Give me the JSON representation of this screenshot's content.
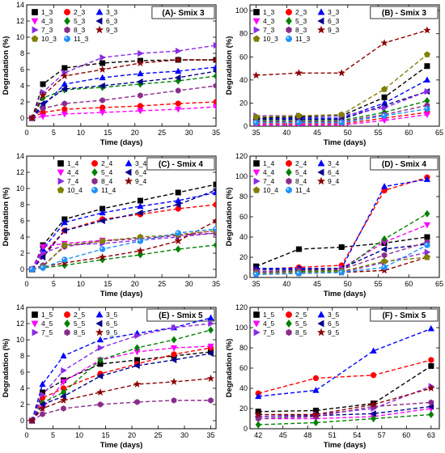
{
  "chart_data": [
    {
      "type": "scatter",
      "title": "(A)- Smix 3",
      "xlabel": "Time (days)",
      "ylabel": "Degradation (%)",
      "xlim": [
        0,
        35
      ],
      "ylim": [
        -1,
        14
      ],
      "xticks": [
        0,
        5,
        10,
        15,
        20,
        25,
        30,
        35
      ],
      "yticks": [
        0,
        2,
        4,
        6,
        8,
        10,
        12,
        14
      ],
      "legend_position": "top-left",
      "legend_columns": 3,
      "x": [
        1,
        3,
        7,
        14,
        21,
        28,
        35
      ],
      "series": [
        {
          "name": "1_3",
          "color": "#000000",
          "marker": "square",
          "values": [
            0,
            4.2,
            6.2,
            6.8,
            7.1,
            7.2,
            7.2
          ]
        },
        {
          "name": "2_3",
          "color": "#ff0000",
          "marker": "circle",
          "values": [
            0,
            0.7,
            1.1,
            1.3,
            1.5,
            1.8,
            2.0
          ]
        },
        {
          "name": "3_3",
          "color": "#0000ff",
          "marker": "triangle-up",
          "values": [
            0,
            1.5,
            4.2,
            5.0,
            5.5,
            5.8,
            6.3
          ]
        },
        {
          "name": "4_3",
          "color": "#ff00ff",
          "marker": "triangle-down",
          "values": [
            0,
            0.2,
            0.5,
            0.7,
            0.9,
            1.1,
            1.4
          ]
        },
        {
          "name": "5_3",
          "color": "#008000",
          "marker": "diamond",
          "values": [
            0,
            2.5,
            3.5,
            3.8,
            4.2,
            4.6,
            5.2
          ]
        },
        {
          "name": "6_3",
          "color": "#00008b",
          "marker": "triangle-left",
          "values": [
            0,
            1.8,
            3.6,
            4.0,
            4.5,
            5.0,
            5.8
          ]
        },
        {
          "name": "7_3",
          "color": "#8a2be2",
          "marker": "triangle-right",
          "values": [
            0,
            3.2,
            5.6,
            7.5,
            8.0,
            8.3,
            9.0
          ]
        },
        {
          "name": "8_3",
          "color": "#8b2c8b",
          "marker": "hexagon",
          "values": [
            0,
            1.2,
            1.8,
            2.2,
            2.8,
            3.4,
            4.0
          ]
        },
        {
          "name": "9_3",
          "color": "#8b0000",
          "marker": "star",
          "values": [
            0,
            2.8,
            5.2,
            6.0,
            6.8,
            7.2,
            7.2
          ]
        },
        {
          "name": "10_3",
          "color": "#808000",
          "marker": "pentagon",
          "values": []
        },
        {
          "name": "11_3",
          "color": "#1e90ff",
          "marker": "sphere",
          "values": []
        }
      ]
    },
    {
      "type": "scatter",
      "title": "(B) - Smix 3",
      "xlabel": "Time (days)",
      "ylabel": "Degradation (%)",
      "xlim": [
        34,
        65
      ],
      "ylim": [
        0,
        105
      ],
      "xticks": [
        35,
        40,
        45,
        50,
        55,
        60,
        65
      ],
      "yticks": [
        0,
        20,
        40,
        60,
        80,
        100
      ],
      "legend_position": "top-left",
      "legend_columns": 3,
      "x": [
        35,
        42,
        49,
        56,
        63
      ],
      "series": [
        {
          "name": "1_3",
          "color": "#000000",
          "marker": "square",
          "values": [
            7,
            8,
            9,
            25,
            52
          ]
        },
        {
          "name": "2_3",
          "color": "#ff0000",
          "marker": "circle",
          "values": [
            2,
            2,
            2,
            7,
            12
          ]
        },
        {
          "name": "3_3",
          "color": "#0000ff",
          "marker": "triangle-up",
          "values": [
            6,
            7,
            7,
            20,
            40
          ]
        },
        {
          "name": "4_3",
          "color": "#ff00ff",
          "marker": "triangle-down",
          "values": [
            1,
            1,
            1,
            5,
            10
          ]
        },
        {
          "name": "5_3",
          "color": "#008000",
          "marker": "diamond",
          "values": [
            5,
            5,
            5,
            12,
            22
          ]
        },
        {
          "name": "6_3",
          "color": "#00008b",
          "marker": "triangle-left",
          "values": [
            6,
            6,
            6,
            18,
            30
          ]
        },
        {
          "name": "7_3",
          "color": "#8a2be2",
          "marker": "triangle-right",
          "values": [
            9,
            9,
            9,
            16,
            30
          ]
        },
        {
          "name": "8_3",
          "color": "#8b2c8b",
          "marker": "hexagon",
          "values": [
            4,
            4,
            4,
            10,
            18
          ]
        },
        {
          "name": "9_3",
          "color": "#8b0000",
          "marker": "star",
          "values": [
            44,
            46,
            46,
            72,
            83
          ]
        },
        {
          "name": "10_3",
          "color": "#808000",
          "marker": "pentagon",
          "values": [
            8,
            9,
            10,
            32,
            62
          ]
        },
        {
          "name": "11_3",
          "color": "#1e90ff",
          "marker": "sphere",
          "values": [
            3,
            3,
            3,
            9,
            15
          ]
        }
      ]
    },
    {
      "type": "scatter",
      "title": "(C) - Smix 4",
      "xlabel": "Time (days)",
      "ylabel": "Degradation (%)",
      "xlim": [
        0,
        35
      ],
      "ylim": [
        -1,
        14
      ],
      "xticks": [
        0,
        5,
        10,
        15,
        20,
        25,
        30,
        35
      ],
      "yticks": [
        0,
        2,
        4,
        6,
        8,
        10,
        12,
        14
      ],
      "legend_position": "top-center",
      "legend_columns": 3,
      "x": [
        1,
        3,
        7,
        14,
        21,
        28,
        35
      ],
      "series": [
        {
          "name": "1_4",
          "color": "#000000",
          "marker": "square",
          "values": [
            0,
            3.0,
            6.2,
            7.5,
            8.5,
            9.5,
            10.5
          ]
        },
        {
          "name": "2_4",
          "color": "#ff0000",
          "marker": "circle",
          "values": [
            0,
            1.8,
            4.8,
            6.2,
            6.8,
            7.5,
            8.0
          ]
        },
        {
          "name": "3_4",
          "color": "#0000ff",
          "marker": "triangle-up",
          "values": [
            0,
            2.5,
            5.8,
            7.0,
            7.8,
            8.5,
            9.5
          ]
        },
        {
          "name": "4_4",
          "color": "#ff00ff",
          "marker": "triangle-down",
          "values": [
            0,
            2.8,
            3.2,
            3.6,
            3.8,
            4.2,
            4.8
          ]
        },
        {
          "name": "5_4",
          "color": "#008000",
          "marker": "diamond",
          "values": [
            0,
            0.2,
            0.5,
            1.2,
            1.8,
            2.5,
            3.0
          ]
        },
        {
          "name": "6_4",
          "color": "#00008b",
          "marker": "triangle-left",
          "values": [
            0,
            1.5,
            4.8,
            6.0,
            7.0,
            8.0,
            9.8
          ]
        },
        {
          "name": "7_4",
          "color": "#8a2be2",
          "marker": "triangle-right",
          "values": [
            0,
            2.0,
            3.0,
            3.2,
            3.6,
            4.0,
            4.5
          ]
        },
        {
          "name": "8_4",
          "color": "#8b2c8b",
          "marker": "hexagon",
          "values": [
            0,
            0.5,
            2.8,
            3.5,
            3.8,
            4.2,
            4.5
          ]
        },
        {
          "name": "9_4",
          "color": "#8b0000",
          "marker": "star",
          "values": [
            0,
            0.3,
            0.8,
            1.5,
            2.3,
            3.5,
            6.0
          ]
        },
        {
          "name": "10_4",
          "color": "#808000",
          "marker": "pentagon",
          "values": [
            0,
            0.3,
            3.0,
            3.5,
            4.0,
            4.3,
            4.8
          ]
        },
        {
          "name": "11_4",
          "color": "#1e90ff",
          "marker": "sphere",
          "values": [
            0,
            0.2,
            1.2,
            2.5,
            3.5,
            4.5,
            5.0
          ]
        }
      ]
    },
    {
      "type": "scatter",
      "title": "(D) - Smix 4",
      "xlabel": "Time (days)",
      "ylabel": "Degradation (%)",
      "xlim": [
        34,
        65
      ],
      "ylim": [
        0,
        120
      ],
      "xticks": [
        35,
        40,
        45,
        50,
        55,
        60,
        65
      ],
      "yticks": [
        0,
        20,
        40,
        60,
        80,
        100,
        120
      ],
      "legend_position": "top-left",
      "legend_columns": 3,
      "x": [
        35,
        42,
        49,
        56,
        63
      ],
      "series": [
        {
          "name": "1_4",
          "color": "#000000",
          "marker": "square",
          "values": [
            11,
            28,
            30,
            34,
            40
          ]
        },
        {
          "name": "2_4",
          "color": "#ff0000",
          "marker": "circle",
          "values": [
            8,
            10,
            12,
            86,
            99
          ]
        },
        {
          "name": "3_4",
          "color": "#0000ff",
          "marker": "triangle-up",
          "values": [
            9,
            9,
            9,
            90,
            97
          ]
        },
        {
          "name": "4_4",
          "color": "#ff00ff",
          "marker": "triangle-down",
          "values": [
            6,
            7,
            9,
            35,
            52
          ]
        },
        {
          "name": "5_4",
          "color": "#008000",
          "marker": "diamond",
          "values": [
            5,
            6,
            7,
            38,
            63
          ]
        },
        {
          "name": "6_4",
          "color": "#00008b",
          "marker": "triangle-left",
          "values": [
            8,
            8,
            9,
            28,
            33
          ]
        },
        {
          "name": "7_4",
          "color": "#8a2be2",
          "marker": "triangle-right",
          "values": [
            5,
            5,
            5,
            15,
            25
          ]
        },
        {
          "name": "8_4",
          "color": "#8b2c8b",
          "marker": "hexagon",
          "values": [
            6,
            7,
            8,
            22,
            35
          ]
        },
        {
          "name": "9_4",
          "color": "#8b0000",
          "marker": "star",
          "values": [
            3,
            4,
            5,
            7,
            20
          ]
        },
        {
          "name": "10_4",
          "color": "#808000",
          "marker": "pentagon",
          "values": [
            4,
            5,
            6,
            16,
            20
          ]
        },
        {
          "name": "11_4",
          "color": "#1e90ff",
          "marker": "sphere",
          "values": [
            3,
            4,
            5,
            10,
            32
          ]
        }
      ]
    },
    {
      "type": "scatter",
      "title": "(E) - Smix 5",
      "xlabel": "Time (days)",
      "ylabel": "Degradation (%)",
      "xlim": [
        0,
        36
      ],
      "ylim": [
        -1,
        14
      ],
      "xticks": [
        0,
        5,
        10,
        15,
        20,
        25,
        30,
        35
      ],
      "yticks": [
        0,
        2,
        4,
        6,
        8,
        10,
        12,
        14
      ],
      "legend_position": "top-left",
      "legend_columns": 3,
      "x": [
        1,
        3,
        7,
        14,
        21,
        28,
        35
      ],
      "series": [
        {
          "name": "1_5",
          "color": "#000000",
          "marker": "square",
          "values": [
            0,
            3.5,
            5.0,
            7.0,
            7.5,
            8.0,
            8.5
          ]
        },
        {
          "name": "2_5",
          "color": "#ff0000",
          "marker": "circle",
          "values": [
            0,
            2.8,
            4.0,
            5.8,
            7.0,
            8.2,
            9.0
          ]
        },
        {
          "name": "3_5",
          "color": "#0000ff",
          "marker": "triangle-up",
          "values": [
            0,
            4.5,
            8.0,
            10.0,
            10.8,
            11.5,
            12.7
          ]
        },
        {
          "name": "4_5",
          "color": "#ff00ff",
          "marker": "triangle-down",
          "values": [
            0,
            1.5,
            4.8,
            7.5,
            8.5,
            9.0,
            9.2
          ]
        },
        {
          "name": "5_5",
          "color": "#008000",
          "marker": "diamond",
          "values": [
            0,
            2.2,
            3.5,
            7.5,
            9.0,
            10.0,
            11.2
          ]
        },
        {
          "name": "6_5",
          "color": "#00008b",
          "marker": "triangle-left",
          "values": [
            0,
            2.0,
            3.0,
            5.5,
            6.8,
            7.5,
            8.3
          ]
        },
        {
          "name": "7_5",
          "color": "#8a2be2",
          "marker": "triangle-right",
          "values": [
            0,
            3.2,
            6.2,
            9.0,
            10.5,
            11.5,
            12.0
          ]
        },
        {
          "name": "8_5",
          "color": "#8b2c8b",
          "marker": "hexagon",
          "values": [
            0,
            0.8,
            1.5,
            2.0,
            2.3,
            2.5,
            2.5
          ]
        },
        {
          "name": "9_5",
          "color": "#8b0000",
          "marker": "star",
          "values": [
            0,
            1.5,
            2.5,
            3.5,
            4.5,
            4.8,
            5.2
          ]
        }
      ]
    },
    {
      "type": "scatter",
      "title": "(F) - Smix 5",
      "xlabel": "Time (days)",
      "ylabel": "Degradation (%)",
      "xlim": [
        41,
        64
      ],
      "ylim": [
        0,
        120
      ],
      "xticks": [
        42,
        45,
        48,
        51,
        54,
        57,
        60,
        63
      ],
      "yticks": [
        0,
        20,
        40,
        60,
        80,
        100,
        120
      ],
      "legend_position": "top-left",
      "legend_columns": 3,
      "x": [
        42,
        49,
        56,
        63
      ],
      "series": [
        {
          "name": "1_5",
          "color": "#000000",
          "marker": "square",
          "values": [
            17,
            18,
            25,
            62
          ]
        },
        {
          "name": "2_5",
          "color": "#ff0000",
          "marker": "circle",
          "values": [
            35,
            50,
            53,
            68
          ]
        },
        {
          "name": "3_5",
          "color": "#0000ff",
          "marker": "triangle-up",
          "values": [
            32,
            38,
            77,
            99
          ]
        },
        {
          "name": "4_5",
          "color": "#ff00ff",
          "marker": "triangle-down",
          "values": [
            10,
            10,
            12,
            20
          ]
        },
        {
          "name": "5_5",
          "color": "#008000",
          "marker": "diamond",
          "values": [
            4,
            6,
            10,
            14
          ]
        },
        {
          "name": "6_5",
          "color": "#00008b",
          "marker": "triangle-left",
          "values": [
            12,
            13,
            15,
            22
          ]
        },
        {
          "name": "7_5",
          "color": "#8a2be2",
          "marker": "triangle-right",
          "values": [
            12,
            14,
            20,
            42
          ]
        },
        {
          "name": "8_5",
          "color": "#8b2c8b",
          "marker": "hexagon",
          "values": [
            10,
            12,
            22,
            26
          ]
        },
        {
          "name": "9_5",
          "color": "#8b0000",
          "marker": "star",
          "values": [
            14,
            14,
            24,
            40
          ]
        }
      ]
    }
  ]
}
